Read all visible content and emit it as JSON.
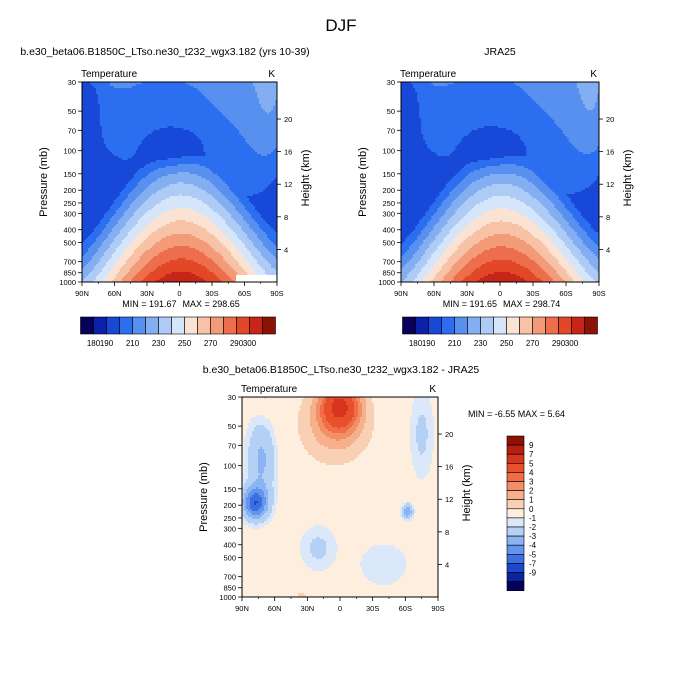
{
  "page_title": "DJF",
  "chart_data": [
    {
      "type": "heatmap",
      "id": "model",
      "title": "b.e30_beta06.B1850C_LTso.ne30_t232_wgx3.182 (yrs 10-39)",
      "left_label": "Temperature",
      "right_label": "K",
      "xlabel": "",
      "ylabel": "Pressure (mb)",
      "y2label": "Height (km)",
      "x_ticks": [
        "90N",
        "60N",
        "30N",
        "0",
        "30S",
        "60S",
        "90S"
      ],
      "y_ticks": [
        30,
        50,
        70,
        100,
        150,
        200,
        250,
        300,
        400,
        500,
        700,
        850,
        1000
      ],
      "y2_ticks": [
        4,
        8,
        12,
        16,
        20
      ],
      "ylim": [
        1000,
        30
      ],
      "xlim": [
        90,
        -90
      ],
      "min_label": "MIN = 191.67",
      "max_label": "MAX = 298.65",
      "min": 191.67,
      "max": 298.65,
      "colorbar_orientation": "horizontal-below"
    },
    {
      "type": "heatmap",
      "id": "obs",
      "title": "JRA25",
      "left_label": "Temperature",
      "right_label": "K",
      "xlabel": "",
      "ylabel": "Pressure (mb)",
      "y2label": "Height (km)",
      "x_ticks": [
        "90N",
        "60N",
        "30N",
        "0",
        "30S",
        "60S",
        "90S"
      ],
      "y_ticks": [
        30,
        50,
        70,
        100,
        150,
        200,
        250,
        300,
        400,
        500,
        700,
        850,
        1000
      ],
      "y2_ticks": [
        4,
        8,
        12,
        16,
        20
      ],
      "ylim": [
        1000,
        30
      ],
      "xlim": [
        90,
        -90
      ],
      "min_label": "MIN = 191.65",
      "max_label": "MAX = 298.74",
      "min": 191.65,
      "max": 298.74,
      "colorbar_orientation": "horizontal-below"
    },
    {
      "type": "heatmap",
      "id": "diff",
      "title": "b.e30_beta06.B1850C_LTso.ne30_t232_wgx3.182 - JRA25",
      "left_label": "Temperature",
      "right_label": "K",
      "xlabel": "",
      "ylabel": "Pressure (mb)",
      "y2label": "Height (km)",
      "x_ticks": [
        "90N",
        "60N",
        "30N",
        "0",
        "30S",
        "60S",
        "90S"
      ],
      "y_ticks": [
        30,
        50,
        70,
        100,
        150,
        200,
        250,
        300,
        400,
        500,
        700,
        850,
        1000
      ],
      "y2_ticks": [
        4,
        8,
        12,
        16,
        20
      ],
      "ylim": [
        1000,
        30
      ],
      "xlim": [
        90,
        -90
      ],
      "minmax_label": "MIN = -6.55  MAX =  5.64",
      "min": -6.55,
      "max": 5.64,
      "colorbar_orientation": "vertical-right"
    }
  ],
  "colorbars": {
    "abs": {
      "labels": [
        "180",
        "190",
        "210",
        "230",
        "250",
        "270",
        "290",
        "300"
      ],
      "levels": [
        180,
        190,
        200,
        210,
        220,
        230,
        240,
        250,
        260,
        270,
        280,
        290,
        300
      ],
      "colors": [
        "#08005a",
        "#0c20a8",
        "#1848d8",
        "#2c6ef0",
        "#5890f0",
        "#84aef2",
        "#aecbf6",
        "#d6e6fa",
        "#fbe3d4",
        "#f8c2a6",
        "#f39a78",
        "#ec6e4c",
        "#e24828",
        "#c62618",
        "#8c1208"
      ]
    },
    "diff": {
      "labels": [
        "9",
        "7",
        "5",
        "4",
        "3",
        "2",
        "1",
        "0",
        "-1",
        "-2",
        "-3",
        "-4",
        "-5",
        "-7",
        "-9"
      ],
      "colors_top_to_bottom": [
        "#8c1208",
        "#b81e12",
        "#d6341e",
        "#e8502c",
        "#f06e46",
        "#f38f66",
        "#f6b08c",
        "#f9d0b4",
        "#fdeede",
        "#dbe8f9",
        "#b4d0f4",
        "#8cb4f0",
        "#6494ec",
        "#3c70e2",
        "#1c48cc",
        "#0a24a0",
        "#06005c"
      ]
    }
  },
  "colors": {
    "zero_band": "#fdeede",
    "neg_light": "#dbe8f9",
    "pos_max": "#8c1208",
    "neg_max": "#06005c"
  }
}
